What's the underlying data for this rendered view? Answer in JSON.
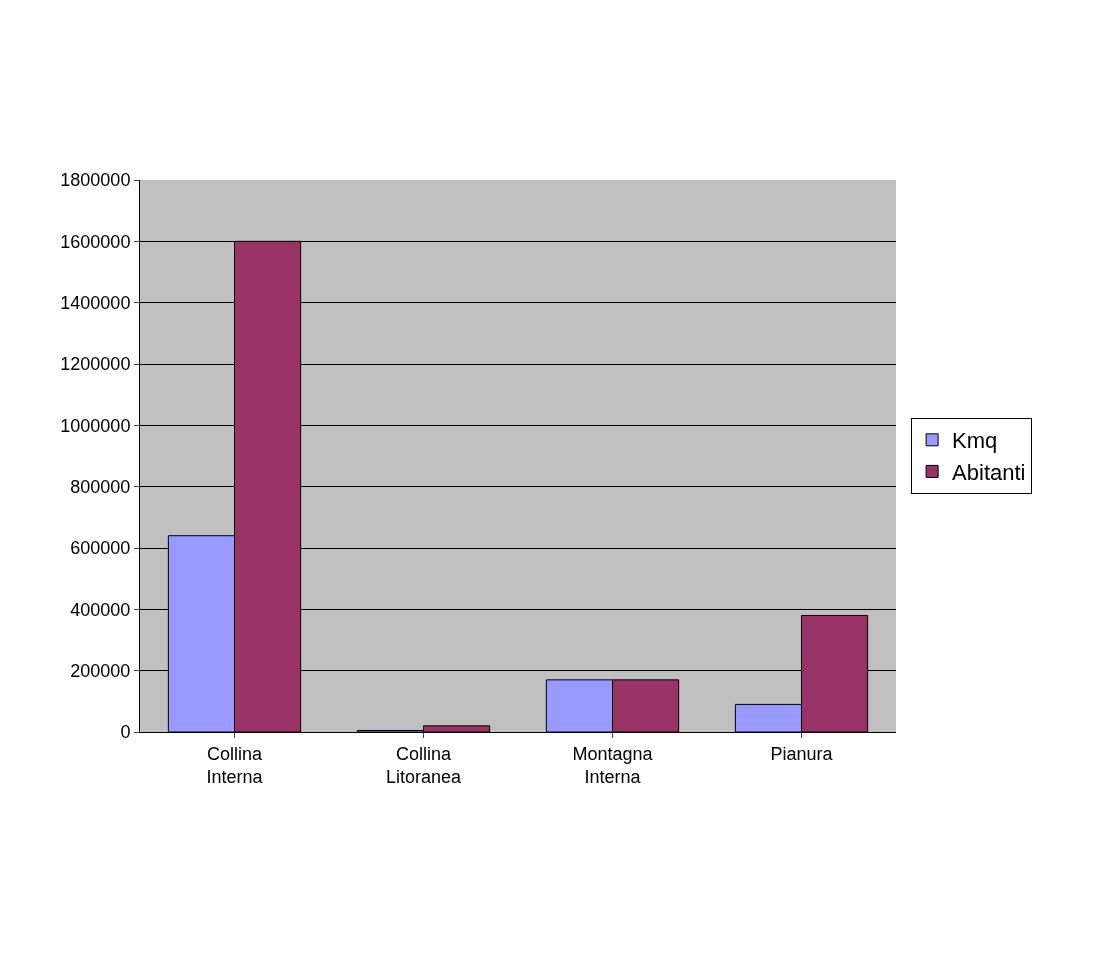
{
  "chart_data": {
    "type": "bar",
    "categories": [
      "Collina Interna",
      "Collina Litoranea",
      "Montagna Interna",
      "Pianura"
    ],
    "series": [
      {
        "name": "Kmq",
        "color": "#9999ff",
        "values": [
          640000,
          5000,
          170000,
          90000
        ]
      },
      {
        "name": "Abitanti",
        "color": "#993366",
        "values": [
          1600000,
          20000,
          170000,
          380000
        ]
      }
    ],
    "ylim": [
      0,
      1800000
    ],
    "yticks": [
      0,
      200000,
      400000,
      600000,
      800000,
      1000000,
      1200000,
      1400000,
      1600000,
      1800000
    ],
    "grid": "y",
    "legend": "right"
  }
}
